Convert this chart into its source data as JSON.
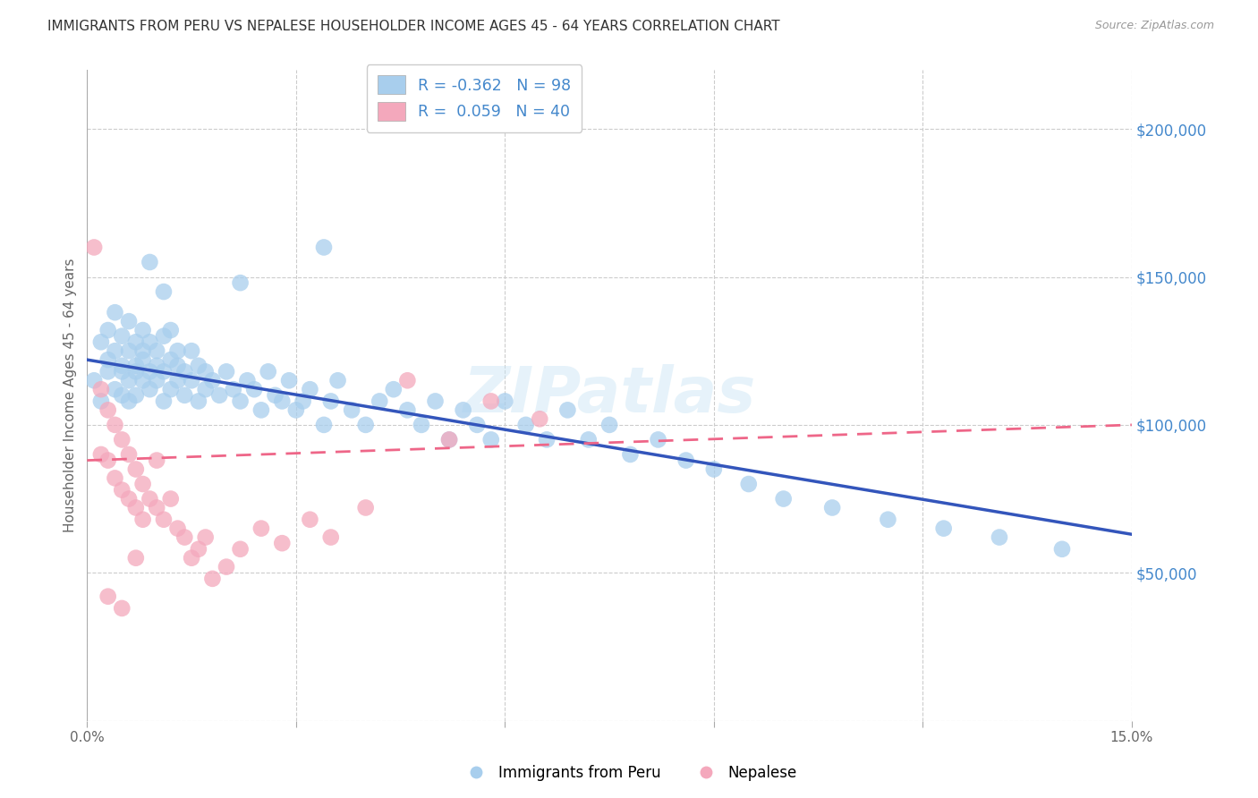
{
  "title": "IMMIGRANTS FROM PERU VS NEPALESE HOUSEHOLDER INCOME AGES 45 - 64 YEARS CORRELATION CHART",
  "source": "Source: ZipAtlas.com",
  "ylabel": "Householder Income Ages 45 - 64 years",
  "xmin": 0.0,
  "xmax": 0.15,
  "ymin": 0,
  "ymax": 220000,
  "yticks": [
    0,
    50000,
    100000,
    150000,
    200000
  ],
  "ytick_labels": [
    "",
    "$50,000",
    "$100,000",
    "$150,000",
    "$200,000"
  ],
  "xticks": [
    0.0,
    0.03,
    0.06,
    0.09,
    0.12,
    0.15
  ],
  "xtick_labels": [
    "0.0%",
    "",
    "",
    "",
    "",
    "15.0%"
  ],
  "color_peru": "#A8CEED",
  "color_nepalese": "#F4A8BC",
  "color_line_peru": "#3355BB",
  "color_line_nepalese": "#EE6688",
  "color_title": "#333333",
  "color_source": "#999999",
  "color_ytick_labels": "#4488CC",
  "background_color": "#FFFFFF",
  "watermark": "ZIPatlas",
  "peru_line_x0": 0.0,
  "peru_line_y0": 122000,
  "peru_line_x1": 0.15,
  "peru_line_y1": 63000,
  "nep_line_x0": 0.0,
  "nep_line_y0": 88000,
  "nep_line_x1": 0.15,
  "nep_line_y1": 100000,
  "peru_x": [
    0.001,
    0.002,
    0.002,
    0.003,
    0.003,
    0.003,
    0.004,
    0.004,
    0.004,
    0.005,
    0.005,
    0.005,
    0.005,
    0.006,
    0.006,
    0.006,
    0.006,
    0.007,
    0.007,
    0.007,
    0.007,
    0.008,
    0.008,
    0.008,
    0.008,
    0.009,
    0.009,
    0.009,
    0.01,
    0.01,
    0.01,
    0.011,
    0.011,
    0.011,
    0.012,
    0.012,
    0.012,
    0.013,
    0.013,
    0.013,
    0.014,
    0.014,
    0.015,
    0.015,
    0.016,
    0.016,
    0.017,
    0.017,
    0.018,
    0.019,
    0.02,
    0.021,
    0.022,
    0.023,
    0.024,
    0.025,
    0.026,
    0.027,
    0.028,
    0.029,
    0.03,
    0.031,
    0.032,
    0.034,
    0.035,
    0.036,
    0.038,
    0.04,
    0.042,
    0.044,
    0.046,
    0.048,
    0.05,
    0.052,
    0.054,
    0.056,
    0.058,
    0.06,
    0.063,
    0.066,
    0.069,
    0.072,
    0.075,
    0.078,
    0.082,
    0.086,
    0.09,
    0.095,
    0.1,
    0.107,
    0.115,
    0.123,
    0.131,
    0.14,
    0.034,
    0.022,
    0.011,
    0.009
  ],
  "peru_y": [
    115000,
    128000,
    108000,
    122000,
    118000,
    132000,
    125000,
    112000,
    138000,
    120000,
    110000,
    130000,
    118000,
    125000,
    115000,
    135000,
    108000,
    120000,
    128000,
    118000,
    110000,
    132000,
    122000,
    115000,
    125000,
    118000,
    128000,
    112000,
    125000,
    115000,
    120000,
    130000,
    118000,
    108000,
    122000,
    132000,
    112000,
    120000,
    115000,
    125000,
    118000,
    110000,
    125000,
    115000,
    120000,
    108000,
    118000,
    112000,
    115000,
    110000,
    118000,
    112000,
    108000,
    115000,
    112000,
    105000,
    118000,
    110000,
    108000,
    115000,
    105000,
    108000,
    112000,
    100000,
    108000,
    115000,
    105000,
    100000,
    108000,
    112000,
    105000,
    100000,
    108000,
    95000,
    105000,
    100000,
    95000,
    108000,
    100000,
    95000,
    105000,
    95000,
    100000,
    90000,
    95000,
    88000,
    85000,
    80000,
    75000,
    72000,
    68000,
    65000,
    62000,
    58000,
    160000,
    148000,
    145000,
    155000
  ],
  "nepalese_x": [
    0.001,
    0.002,
    0.002,
    0.003,
    0.003,
    0.004,
    0.004,
    0.005,
    0.005,
    0.006,
    0.006,
    0.007,
    0.007,
    0.008,
    0.008,
    0.009,
    0.01,
    0.011,
    0.012,
    0.013,
    0.014,
    0.015,
    0.016,
    0.017,
    0.018,
    0.02,
    0.022,
    0.025,
    0.028,
    0.032,
    0.035,
    0.04,
    0.046,
    0.052,
    0.058,
    0.065,
    0.003,
    0.005,
    0.007,
    0.01
  ],
  "nepalese_y": [
    160000,
    112000,
    90000,
    105000,
    88000,
    100000,
    82000,
    95000,
    78000,
    90000,
    75000,
    85000,
    72000,
    80000,
    68000,
    75000,
    72000,
    68000,
    75000,
    65000,
    62000,
    55000,
    58000,
    62000,
    48000,
    52000,
    58000,
    65000,
    60000,
    68000,
    62000,
    72000,
    115000,
    95000,
    108000,
    102000,
    42000,
    38000,
    55000,
    88000
  ]
}
